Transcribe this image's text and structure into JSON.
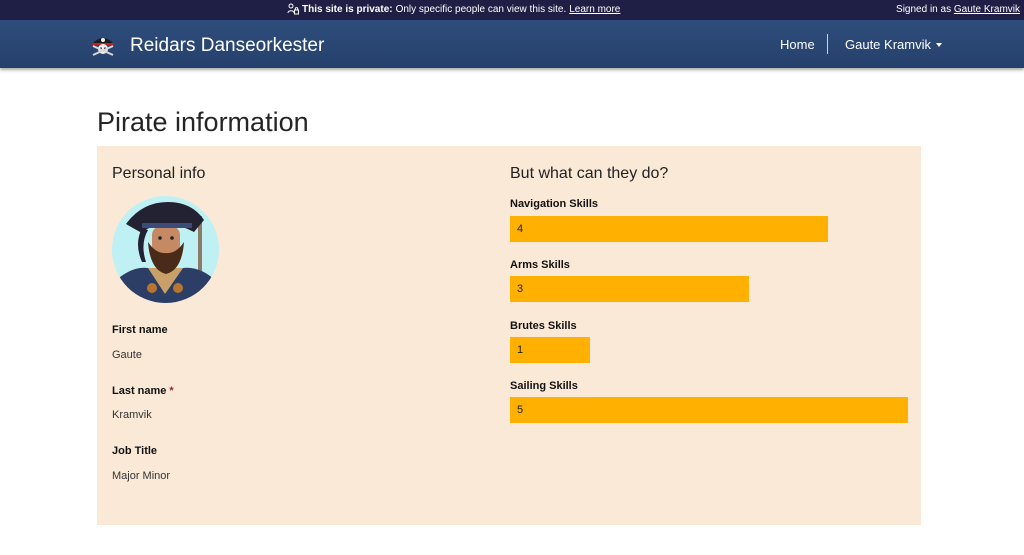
{
  "privacy_banner": {
    "bold_text": "This site is private:",
    "text": "Only specific people can view this site.",
    "link": "Learn more",
    "signed_in_prefix": "Signed in as",
    "signed_in_user": "Gaute Kramvik"
  },
  "navbar": {
    "site_title": "Reidars Danseorkester",
    "home": "Home",
    "user_menu": "Gaute Kramvik"
  },
  "page": {
    "title": "Pirate information"
  },
  "personal_info": {
    "heading": "Personal info",
    "fields": [
      {
        "label": "First name",
        "value": "Gaute",
        "required": false
      },
      {
        "label": "Last name",
        "value": "Kramvik",
        "required": true
      },
      {
        "label": "Job Title",
        "value": "Major Minor",
        "required": false
      }
    ]
  },
  "skills": {
    "heading": "But what can they do?",
    "max_value": 5,
    "items": [
      {
        "label": "Navigation Skills",
        "value": 4
      },
      {
        "label": "Arms Skills",
        "value": 3
      },
      {
        "label": "Brutes Skills",
        "value": 1
      },
      {
        "label": "Sailing Skills",
        "value": 5
      }
    ]
  },
  "colors": {
    "privacy_bar": "#1f1f45",
    "navbar": "#2b4774",
    "panel": "#fae9d7",
    "skill_bar": "#ffb000",
    "required": "#a4262c"
  }
}
